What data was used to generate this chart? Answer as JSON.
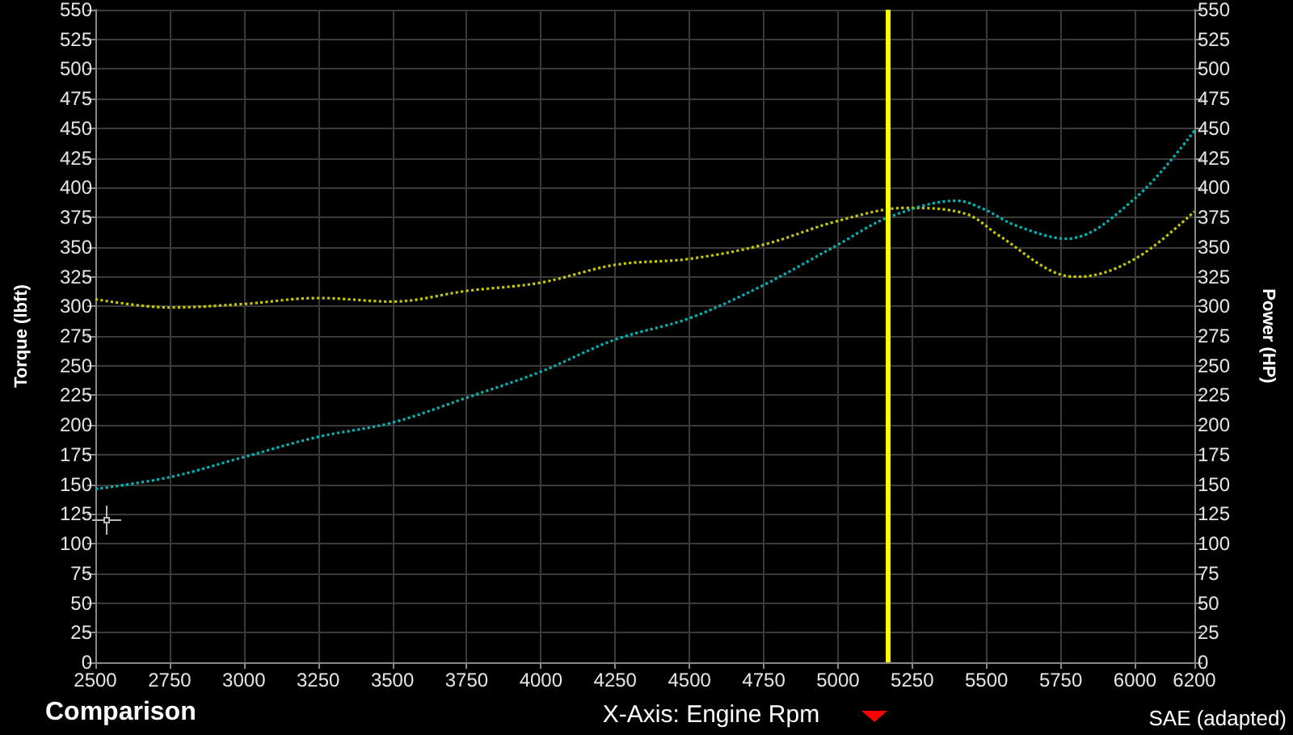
{
  "chart_data": {
    "type": "line",
    "xlabel": "X-Axis: Engine Rpm",
    "ylabel": "Torque (lbft)",
    "y2label": "Power (HP)",
    "annotations": [
      "Comparison",
      "SAE (adapted)"
    ],
    "series": [
      {
        "color": "#c8c800",
        "x": [
          2500,
          2750,
          3000,
          3250,
          3500,
          3750,
          4000,
          4250,
          4500,
          4750,
          5000,
          5230,
          5430,
          5540,
          5760,
          5810,
          6000,
          6200
        ],
        "values": [
          306,
          299,
          302,
          307,
          304,
          313,
          320,
          335,
          340,
          352,
          372,
          383,
          378,
          360,
          326,
          325,
          340,
          380
        ]
      },
      {
        "axis": "y2",
        "color": "#00b4b4",
        "x": [
          2500,
          2750,
          3000,
          3250,
          3500,
          3750,
          4000,
          4250,
          4500,
          4750,
          5000,
          5170,
          5400,
          5490,
          5600,
          5770,
          6000,
          6200
        ],
        "values": [
          146,
          156,
          173,
          190,
          202,
          223,
          245,
          272,
          290,
          318,
          352,
          375,
          389,
          382,
          368,
          357,
          391,
          448
        ]
      }
    ],
    "xlim": [
      2500,
      6200
    ],
    "xticks": [
      2500,
      2750,
      3000,
      3250,
      3500,
      3750,
      4000,
      4250,
      4500,
      4750,
      5000,
      5250,
      5500,
      5750,
      6000,
      6200
    ],
    "ylim": [
      0,
      550
    ],
    "yticks": [
      0,
      25,
      50,
      75,
      100,
      125,
      150,
      175,
      200,
      225,
      250,
      275,
      300,
      325,
      350,
      375,
      400,
      425,
      450,
      475,
      500,
      525,
      550
    ],
    "y2lim": [
      0,
      550
    ],
    "y2ticks": [
      0,
      25,
      50,
      75,
      100,
      125,
      150,
      175,
      200,
      225,
      250,
      275,
      300,
      325,
      350,
      375,
      400,
      425,
      450,
      475,
      500,
      525,
      550
    ],
    "ref_lines": [
      {
        "axis": "x",
        "value": 5170,
        "color": "#ffff00"
      }
    ],
    "grid": true,
    "legend": false,
    "marker": "none",
    "line_style": "dotted"
  }
}
